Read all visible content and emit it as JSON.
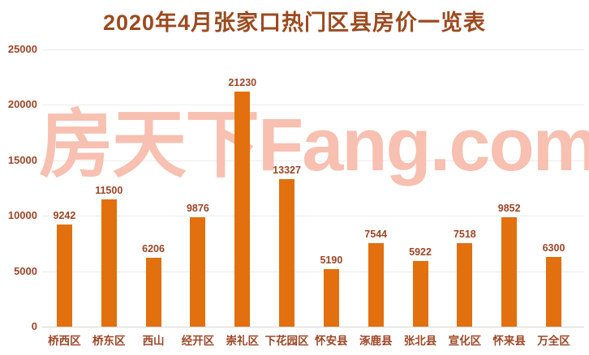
{
  "title": "2020年4月张家口热门区县房价一览表",
  "watermark": "房天下Fang.com",
  "colors": {
    "background": "#FFFFFF",
    "bar": "#E2700E",
    "title_text": "#9C4A1F",
    "axis_label_text": "#9D4727",
    "value_label_text": "#9D4526",
    "watermark_text": "#F7C0B0",
    "gridline": "#EDEBE9",
    "baseline": "#D9D5D2"
  },
  "chart_data": {
    "type": "bar",
    "title": "2020年4月张家口热门区县房价一览表",
    "categories": [
      "桥西区",
      "桥东区",
      "西山",
      "经开区",
      "崇礼区",
      "下花园区",
      "怀安县",
      "涿鹿县",
      "张北县",
      "宣化区",
      "怀来县",
      "万全区"
    ],
    "values": [
      9242,
      11500,
      6206,
      9876,
      21230,
      13327,
      5190,
      7544,
      5922,
      7518,
      9852,
      6300
    ],
    "xlabel": "",
    "ylabel": "",
    "ylim": [
      0,
      25000
    ],
    "yticks": [
      0,
      5000,
      10000,
      15000,
      20000,
      25000
    ],
    "grid": true,
    "legend": false,
    "value_labels_shown": true,
    "watermark": "房天下Fang.com"
  }
}
